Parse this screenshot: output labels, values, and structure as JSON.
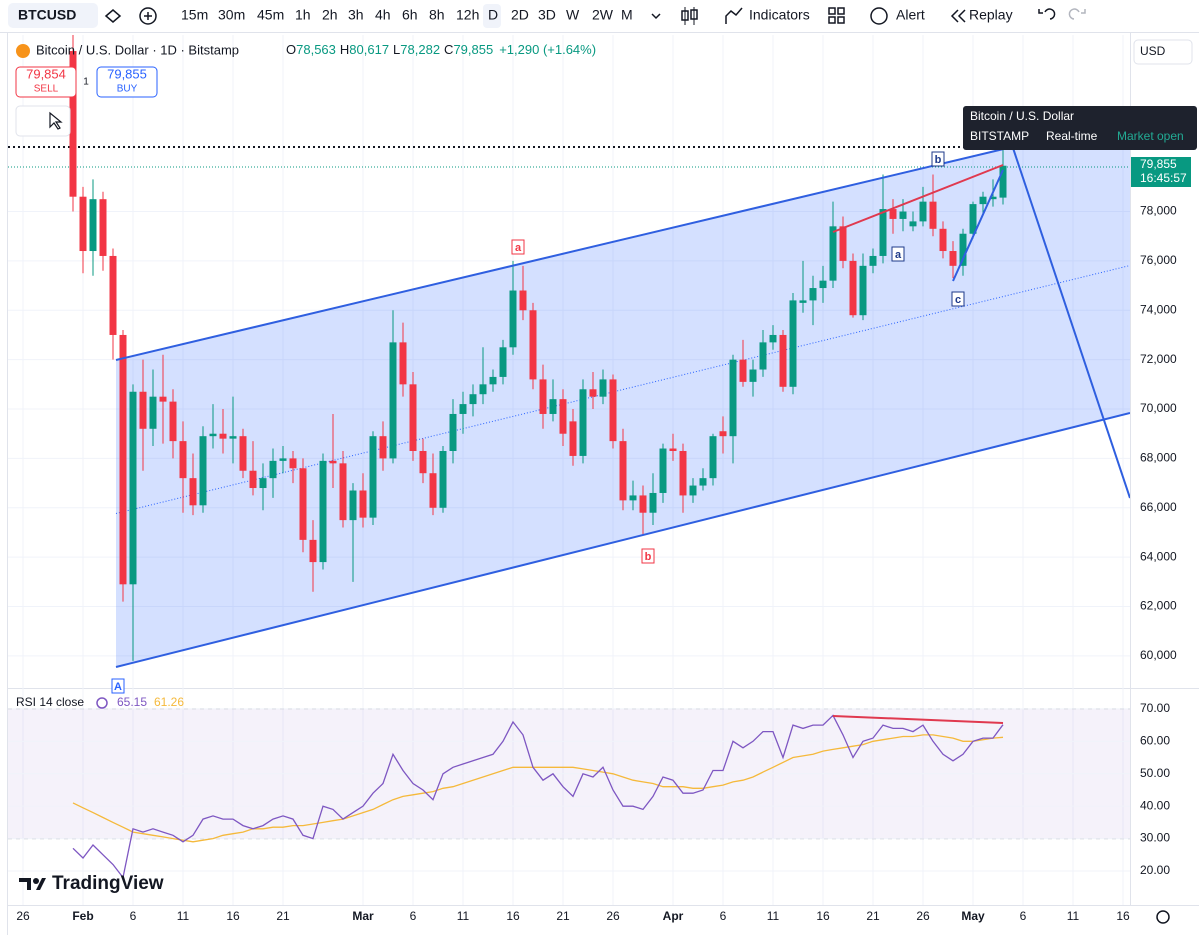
{
  "toolbar": {
    "symbol": "BTCUSD",
    "timeframes": [
      "15m",
      "30m",
      "45m",
      "1h",
      "2h",
      "3h",
      "4h",
      "6h",
      "8h",
      "12h",
      "D",
      "2D",
      "3D",
      "W",
      "2W",
      "M"
    ],
    "active": "D",
    "indicators": "Indicators",
    "alert": "Alert",
    "replay": "Replay"
  },
  "legend": {
    "title": "Bitcoin / U.S. Dollar · 1D · Bitstamp",
    "items": [
      {
        "k": "O",
        "v": "78,563"
      },
      {
        "k": "H",
        "v": "80,617"
      },
      {
        "k": "L",
        "v": "78,282"
      },
      {
        "k": "C",
        "v": "79,855"
      }
    ],
    "change": "+1,290 (+1.64%)"
  },
  "trade": {
    "sell_price": "79,854",
    "sell": "SELL",
    "spread": "1",
    "buy_price": "79,855",
    "buy": "BUY"
  },
  "tooltip": {
    "name": "Bitcoin / U.S. Dollar",
    "exchange": "BITSTAMP",
    "feed": "Real-time",
    "status": "Market open"
  },
  "currency": "USD",
  "last_price": {
    "label": "79,855",
    "countdown": "16:45:57"
  },
  "wave_labels": [
    "a",
    "b",
    "c",
    "a",
    "b",
    "A"
  ],
  "brand": "TradingView",
  "chart_data": [
    {
      "type": "candlestick",
      "up_color": "#089981",
      "down_color": "#f23645",
      "xlim": [
        -6.5,
        105.7
      ],
      "ylim": [
        58700,
        85150
      ],
      "xticks": [
        {
          "value": -5,
          "label": "26"
        },
        {
          "value": 1,
          "label": "Feb"
        },
        {
          "value": 6,
          "label": "6"
        },
        {
          "value": 11,
          "label": "11"
        },
        {
          "value": 16,
          "label": "16"
        },
        {
          "value": 21,
          "label": "21"
        },
        {
          "value": 29,
          "label": "Mar"
        },
        {
          "value": 34,
          "label": "6"
        },
        {
          "value": 39,
          "label": "11"
        },
        {
          "value": 44,
          "label": "16"
        },
        {
          "value": 49,
          "label": "21"
        },
        {
          "value": 54,
          "label": "26"
        },
        {
          "value": 60,
          "label": "Apr"
        },
        {
          "value": 65,
          "label": "6"
        },
        {
          "value": 70,
          "label": "11"
        },
        {
          "value": 75,
          "label": "16"
        },
        {
          "value": 80,
          "label": "21"
        },
        {
          "value": 85,
          "label": "26"
        },
        {
          "value": 90,
          "label": "May"
        },
        {
          "value": 95,
          "label": "6"
        },
        {
          "value": 100,
          "label": "11"
        },
        {
          "value": 105,
          "label": "16"
        }
      ],
      "yticks": [
        {
          "value": 60000,
          "label": "60,000"
        },
        {
          "value": 62000,
          "label": "62,000"
        },
        {
          "value": 64000,
          "label": "64,000"
        },
        {
          "value": 66000,
          "label": "66,000"
        },
        {
          "value": 68000,
          "label": "68,000"
        },
        {
          "value": 70000,
          "label": "70,000"
        },
        {
          "value": 72000,
          "label": "72,000"
        },
        {
          "value": 74000,
          "label": "74,000"
        },
        {
          "value": 76000,
          "label": "76,000"
        },
        {
          "value": 78000,
          "label": "78,000"
        }
      ],
      "grid": true,
      "ohlc": [
        [
          84500,
          85200,
          78000,
          78600
        ],
        [
          78600,
          79000,
          75500,
          76400
        ],
        [
          76400,
          79300,
          75400,
          78500
        ],
        [
          78500,
          78800,
          75600,
          76200
        ],
        [
          76200,
          76500,
          72000,
          73000
        ],
        [
          73000,
          73200,
          62200,
          62900
        ],
        [
          62900,
          71000,
          59800,
          70700
        ],
        [
          70700,
          72000,
          67500,
          69200
        ],
        [
          69200,
          71600,
          68500,
          70500
        ],
        [
          70500,
          72200,
          68600,
          70300
        ],
        [
          70300,
          70800,
          68000,
          68700
        ],
        [
          68700,
          69500,
          65800,
          67200
        ],
        [
          67200,
          68200,
          65700,
          66100
        ],
        [
          66100,
          69300,
          65800,
          68900
        ],
        [
          68900,
          70200,
          68400,
          69000
        ],
        [
          69000,
          70000,
          68200,
          68800
        ],
        [
          68800,
          70500,
          67800,
          68900
        ],
        [
          68900,
          69200,
          67200,
          67500
        ],
        [
          67500,
          68700,
          66500,
          66800
        ],
        [
          66800,
          67800,
          65900,
          67200
        ],
        [
          67200,
          68400,
          66400,
          67900
        ],
        [
          67900,
          68500,
          67400,
          68000
        ],
        [
          68000,
          68300,
          67000,
          67600
        ],
        [
          67600,
          68000,
          64200,
          64700
        ],
        [
          64700,
          65500,
          62600,
          63800
        ],
        [
          63800,
          68200,
          63500,
          67900
        ],
        [
          67900,
          69800,
          66800,
          67800
        ],
        [
          67800,
          68300,
          65200,
          65500
        ],
        [
          65500,
          67000,
          63000,
          66700
        ],
        [
          66700,
          67400,
          65200,
          65600
        ],
        [
          65600,
          69100,
          65300,
          68900
        ],
        [
          68900,
          69500,
          67500,
          68000
        ],
        [
          68000,
          74000,
          67800,
          72700
        ],
        [
          72700,
          73500,
          70500,
          71000
        ],
        [
          71000,
          71500,
          67900,
          68300
        ],
        [
          68300,
          68800,
          67000,
          67400
        ],
        [
          67400,
          68200,
          65700,
          66000
        ],
        [
          66000,
          68500,
          65800,
          68300
        ],
        [
          68300,
          70400,
          67800,
          69800
        ],
        [
          69800,
          70700,
          69000,
          70200
        ],
        [
          70200,
          71000,
          69700,
          70600
        ],
        [
          70600,
          72500,
          70200,
          71000
        ],
        [
          71000,
          71600,
          70700,
          71300
        ],
        [
          71300,
          72800,
          71000,
          72500
        ],
        [
          72500,
          76000,
          72200,
          74800
        ],
        [
          74800,
          75800,
          73600,
          74000
        ],
        [
          74000,
          74300,
          70800,
          71200
        ],
        [
          71200,
          71800,
          69200,
          69800
        ],
        [
          69800,
          71200,
          69500,
          70400
        ],
        [
          70400,
          70800,
          68500,
          69000
        ],
        [
          69500,
          70000,
          67700,
          68100
        ],
        [
          68100,
          71200,
          67800,
          70800
        ],
        [
          70800,
          71500,
          70000,
          70500
        ],
        [
          70500,
          71600,
          70200,
          71200
        ],
        [
          71200,
          71400,
          68400,
          68700
        ],
        [
          68700,
          69200,
          65900,
          66300
        ],
        [
          66300,
          67100,
          65900,
          66500
        ],
        [
          66500,
          66900,
          64900,
          65800
        ],
        [
          65800,
          67400,
          65300,
          66600
        ],
        [
          66600,
          68600,
          66200,
          68400
        ],
        [
          68400,
          69000,
          67900,
          68300
        ],
        [
          68300,
          68600,
          65800,
          66500
        ],
        [
          66500,
          67200,
          66200,
          66900
        ],
        [
          66900,
          67600,
          66700,
          67200
        ],
        [
          67200,
          69000,
          66900,
          68900
        ],
        [
          69100,
          69700,
          68200,
          68900
        ],
        [
          68900,
          72200,
          67800,
          72000
        ],
        [
          72000,
          72800,
          70900,
          71100
        ],
        [
          71100,
          72000,
          70500,
          71600
        ],
        [
          71600,
          73200,
          71300,
          72700
        ],
        [
          72700,
          73400,
          72400,
          73000
        ],
        [
          73000,
          73200,
          70700,
          70900
        ],
        [
          70900,
          74700,
          70600,
          74400
        ],
        [
          74300,
          76000,
          73900,
          74400
        ],
        [
          74400,
          75400,
          73400,
          74900
        ],
        [
          74900,
          75800,
          74300,
          75200
        ],
        [
          75200,
          78400,
          74900,
          77400
        ],
        [
          77400,
          77800,
          75700,
          76000
        ],
        [
          76000,
          76300,
          73700,
          73800
        ],
        [
          73800,
          76300,
          73600,
          75800
        ],
        [
          75800,
          76500,
          75500,
          76200
        ],
        [
          76200,
          79500,
          75900,
          78100
        ],
        [
          78100,
          78500,
          77100,
          77700
        ],
        [
          77700,
          78500,
          77200,
          78000
        ],
        [
          77400,
          78000,
          77200,
          77600
        ],
        [
          77600,
          79000,
          77400,
          78400
        ],
        [
          78400,
          79500,
          77000,
          77300
        ],
        [
          77300,
          77600,
          76100,
          76400
        ],
        [
          76400,
          76800,
          75300,
          75800
        ],
        [
          75800,
          77300,
          75400,
          77100
        ],
        [
          77100,
          78400,
          76900,
          78300
        ],
        [
          78300,
          78800,
          77900,
          78600
        ],
        [
          78500,
          79300,
          78200,
          78600
        ],
        [
          78563,
          80617,
          78282,
          79855
        ]
      ]
    },
    {
      "type": "line",
      "title": "RSI 14 close",
      "xlim": [
        -6.5,
        105.7
      ],
      "ylim": [
        9.5,
        74.3
      ],
      "yticks": [
        {
          "value": 20,
          "label": "20.00"
        },
        {
          "value": 30,
          "label": "30.00"
        },
        {
          "value": 40,
          "label": "40.00"
        },
        {
          "value": 50,
          "label": "50.00"
        },
        {
          "value": 60,
          "label": "60.00"
        },
        {
          "value": 70,
          "label": "70.00"
        }
      ],
      "bands": [
        30,
        70
      ],
      "band_color": "#7e57c2",
      "series": [
        {
          "color": "#7e57c2",
          "values": [
            27,
            24,
            28,
            25,
            22,
            18,
            33,
            32,
            33,
            32,
            31,
            29,
            31,
            36,
            37,
            36,
            36,
            34,
            33,
            34,
            36,
            37,
            36,
            31,
            30,
            40,
            39,
            36,
            38,
            40,
            44,
            47,
            56,
            51,
            47,
            45,
            42,
            50,
            52,
            53,
            54,
            55,
            56,
            60,
            66,
            62,
            52,
            48,
            50,
            46,
            43,
            50,
            49,
            52,
            45,
            40,
            40,
            39,
            43,
            49,
            48,
            44,
            44,
            45,
            51,
            51,
            60,
            58,
            60,
            63,
            63,
            55,
            65,
            64,
            65,
            65,
            68,
            62,
            55,
            60,
            61,
            65,
            64,
            64,
            63,
            65,
            60,
            56,
            54,
            56,
            60,
            61,
            61,
            65.15
          ]
        },
        {
          "color": "#f5b93b",
          "values": [
            41,
            39.5,
            38,
            36.5,
            35,
            33.5,
            32,
            31.5,
            31,
            30.5,
            30,
            29.5,
            29,
            29.5,
            30,
            31,
            31.5,
            32,
            33,
            33,
            33.5,
            33.5,
            34,
            34,
            34.5,
            35,
            35.5,
            36,
            37,
            38,
            39,
            40.5,
            42,
            43,
            43.5,
            44,
            44.5,
            45.5,
            46,
            47,
            48,
            49,
            50,
            51,
            52,
            52,
            52,
            52,
            52,
            52,
            52,
            51.5,
            51,
            50.5,
            50,
            49,
            48,
            47.5,
            47,
            46,
            46,
            46,
            45.5,
            45.5,
            46,
            46.5,
            47.5,
            48,
            49,
            50.5,
            52,
            53.5,
            55,
            55.5,
            56,
            57,
            57.5,
            58,
            58.5,
            59,
            60,
            60.5,
            61,
            61.5,
            61.5,
            62,
            62,
            61.5,
            61,
            60,
            60,
            60.5,
            61,
            61.26
          ]
        }
      ]
    }
  ]
}
